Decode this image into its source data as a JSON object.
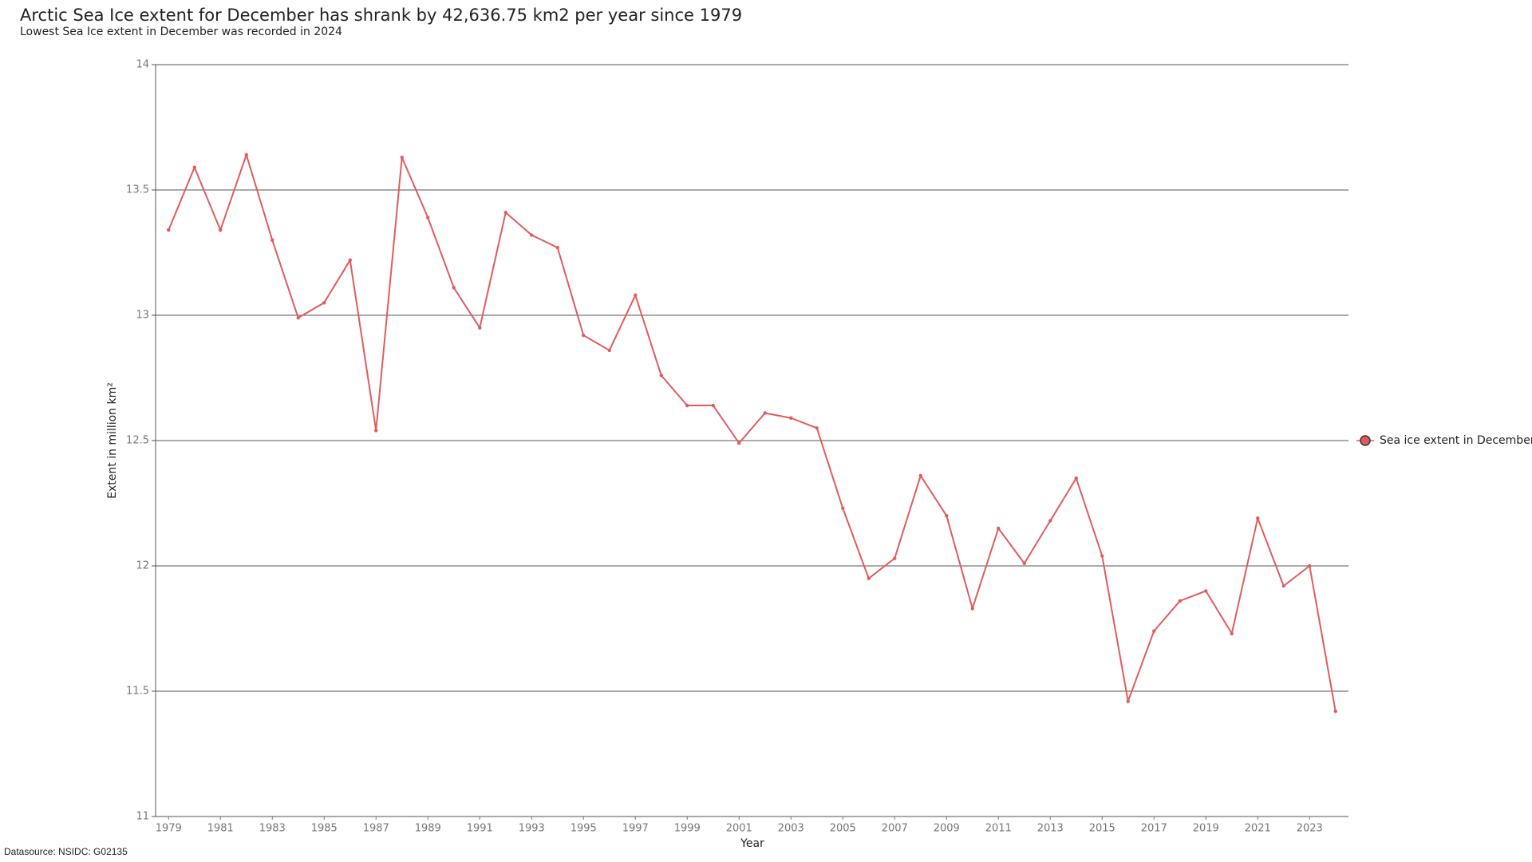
{
  "chart_data": {
    "type": "line",
    "title": "Arctic Sea Ice extent for December has shrank by 42,636.75 km2 per year since 1979",
    "subtitle": "Lowest Sea Ice extent in December was recorded in 2024",
    "x_label": "Year",
    "y_label": "Extent in million km²",
    "source": "Datasource: NSIDC: G02135",
    "x": [
      1979,
      1980,
      1981,
      1982,
      1983,
      1984,
      1985,
      1986,
      1987,
      1988,
      1989,
      1990,
      1991,
      1992,
      1993,
      1994,
      1995,
      1996,
      1997,
      1998,
      1999,
      2000,
      2001,
      2002,
      2003,
      2004,
      2005,
      2006,
      2007,
      2008,
      2009,
      2010,
      2011,
      2012,
      2013,
      2014,
      2015,
      2016,
      2017,
      2018,
      2019,
      2020,
      2021,
      2022,
      2023,
      2024
    ],
    "series": [
      {
        "name": "Sea ice extent in December",
        "color": "#e05c5c",
        "values": [
          13.34,
          13.59,
          13.34,
          13.64,
          13.3,
          12.99,
          13.05,
          13.22,
          12.54,
          13.63,
          13.39,
          13.11,
          12.95,
          13.41,
          13.32,
          13.27,
          12.92,
          12.86,
          13.08,
          12.76,
          12.64,
          12.64,
          12.49,
          12.61,
          12.59,
          12.55,
          12.23,
          11.95,
          12.03,
          12.36,
          12.2,
          11.83,
          12.15,
          12.01,
          12.18,
          12.35,
          12.04,
          11.46,
          11.74,
          11.86,
          11.9,
          11.73,
          12.19,
          11.92,
          12.0,
          11.42
        ]
      }
    ],
    "xlim": [
      1978.5,
      2024.5
    ],
    "xticks": [
      1979,
      1981,
      1983,
      1985,
      1987,
      1989,
      1991,
      1993,
      1995,
      1997,
      1999,
      2001,
      2003,
      2005,
      2007,
      2009,
      2011,
      2013,
      2015,
      2017,
      2019,
      2021,
      2023
    ],
    "ylim": [
      11,
      14
    ],
    "yticks": [
      11,
      11.5,
      12,
      12.5,
      13,
      13.5,
      14
    ],
    "grid": true,
    "legend": "right"
  }
}
